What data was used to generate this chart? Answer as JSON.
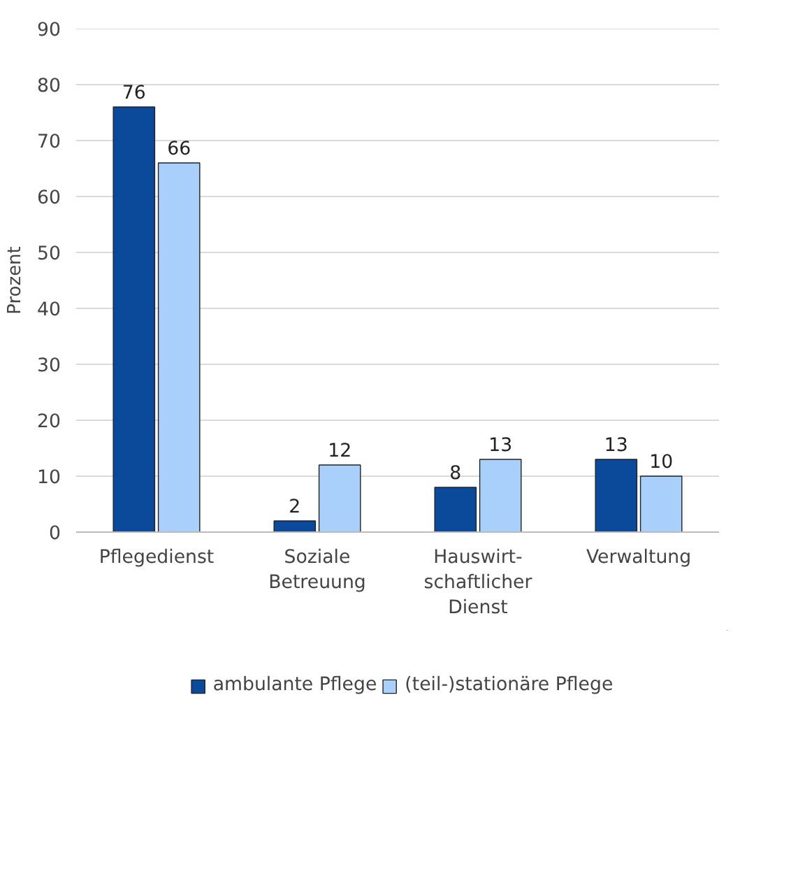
{
  "chart_data": {
    "type": "bar",
    "ylabel": "Prozent",
    "categories": [
      "Pflegedienst",
      "Soziale\nBetreuung",
      "Hauswirt-\nschaftlicher\nDienst",
      "Verwaltung"
    ],
    "series": [
      {
        "name": "ambulante Pflege",
        "color": "#0b4a9b",
        "values": [
          76,
          2,
          8,
          13
        ]
      },
      {
        "name": "(teil-)stationäre Pflege",
        "color": "#a8d0fb",
        "values": [
          66,
          12,
          13,
          10
        ]
      }
    ],
    "ylim": [
      0,
      90
    ],
    "yticks": [
      0,
      10,
      20,
      30,
      40,
      50,
      60,
      70,
      80,
      90
    ],
    "grid": "y",
    "legend": "bottom",
    "data_labels": true
  }
}
